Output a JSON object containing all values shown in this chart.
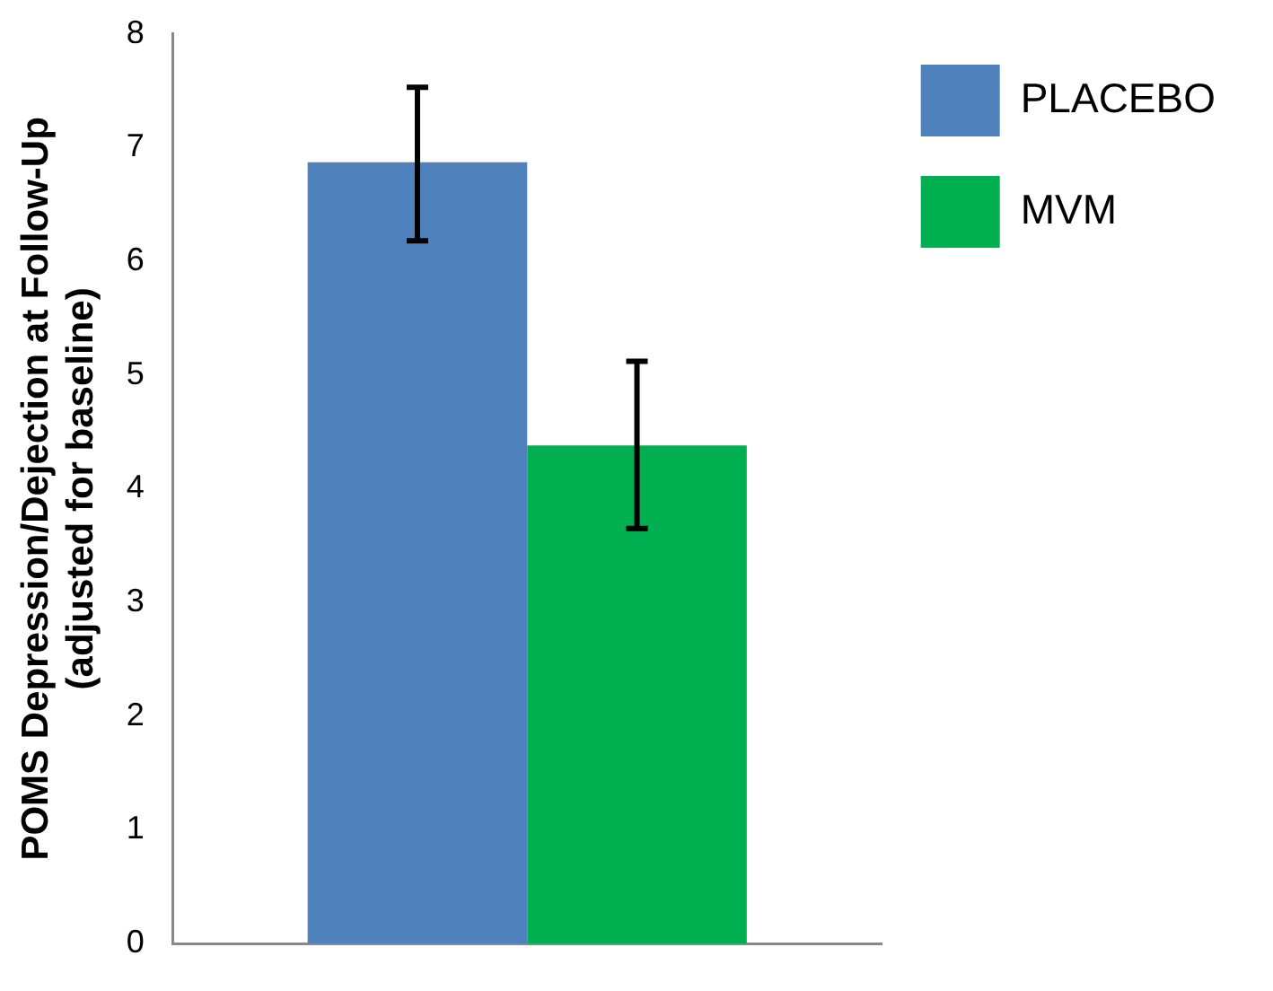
{
  "chart_data": {
    "type": "bar",
    "ylabel": "POMS Depression/Dejection at Follow-Up\n(adjusted for baseline)",
    "categories": [
      null
    ],
    "series": [
      {
        "name": "PLACEBO",
        "color": "#4f81bd",
        "values": [
          6.87
        ],
        "errors": [
          [
            6.18,
            7.53
          ]
        ]
      },
      {
        "name": "MVM",
        "color": "#00b050",
        "values": [
          4.38
        ],
        "errors": [
          [
            3.65,
            5.12
          ]
        ]
      }
    ],
    "ylim": [
      0,
      8
    ],
    "yticks": [
      0,
      1,
      2,
      3,
      4,
      5,
      6,
      7,
      8
    ],
    "grid": false,
    "legend": "right"
  }
}
